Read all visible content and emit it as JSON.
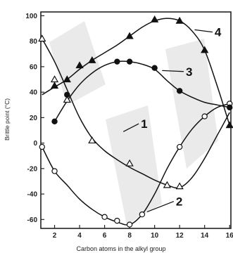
{
  "chart_data": {
    "type": "line",
    "xlabel": "Carbon atoms in the alkyl group",
    "ylabel": "Brittle point (°C)",
    "xlim": [
      0.9,
      16.1
    ],
    "ylim": [
      -67,
      103
    ],
    "xticks": [
      2,
      4,
      6,
      8,
      10,
      12,
      14,
      16
    ],
    "yticks": [
      -60,
      -40,
      -20,
      0,
      20,
      40,
      60,
      80,
      100
    ],
    "grid": false,
    "legend": "none",
    "series": [
      {
        "name": "1",
        "marker": "open-triangle",
        "x": [
          1,
          2,
          3,
          5,
          8,
          11,
          12
        ],
        "y": [
          82,
          50,
          34,
          2,
          -16,
          -33,
          -34
        ],
        "curve": {
          "x": [
            1,
            2,
            3,
            4,
            5,
            6,
            7,
            8,
            9,
            10,
            11,
            12,
            13,
            14,
            15,
            16
          ],
          "y": [
            82,
            64,
            42,
            20,
            4,
            -6,
            -13,
            -19,
            -24,
            -29,
            -33,
            -35,
            -27,
            -12,
            6,
            24
          ]
        }
      },
      {
        "name": "2",
        "marker": "open-circle",
        "x": [
          1,
          2,
          6,
          7,
          8,
          9,
          12,
          14,
          16
        ],
        "y": [
          -3,
          -22,
          -58,
          -61,
          -64,
          -56,
          -3,
          21,
          31
        ],
        "curve": {
          "x": [
            1,
            2,
            3,
            4,
            5,
            6,
            7,
            8,
            9,
            10,
            11,
            12,
            13,
            14,
            15,
            16
          ],
          "y": [
            -3,
            -22,
            -33,
            -44,
            -52,
            -58,
            -62,
            -64,
            -56,
            -40,
            -20,
            -3,
            11,
            21,
            28,
            31
          ]
        }
      },
      {
        "name": "3",
        "marker": "filled-circle",
        "x": [
          2,
          3,
          7,
          8,
          10,
          12,
          16
        ],
        "y": [
          17,
          38,
          64,
          64,
          59,
          41,
          28
        ],
        "curve": {
          "x": [
            2,
            3,
            4,
            5,
            6,
            7,
            8,
            9,
            10,
            11,
            12,
            13,
            14,
            15,
            16
          ],
          "y": [
            17,
            33,
            46,
            55,
            61,
            64,
            64,
            62,
            58,
            49,
            41,
            36,
            32,
            30,
            28
          ]
        }
      },
      {
        "name": "4",
        "marker": "filled-triangle",
        "x": [
          2,
          3,
          4,
          5,
          8,
          10,
          12,
          14,
          16
        ],
        "y": [
          45,
          50,
          61,
          65,
          84,
          97,
          96,
          73,
          14
        ],
        "curve": {
          "x": [
            1,
            2,
            3,
            4,
            5,
            6,
            7,
            8,
            9,
            10,
            11,
            12,
            13,
            14,
            15,
            16
          ],
          "y": [
            38,
            44,
            50,
            58,
            65,
            71,
            77,
            84,
            91,
            96,
            98,
            96,
            88,
            73,
            45,
            14
          ]
        }
      }
    ]
  }
}
